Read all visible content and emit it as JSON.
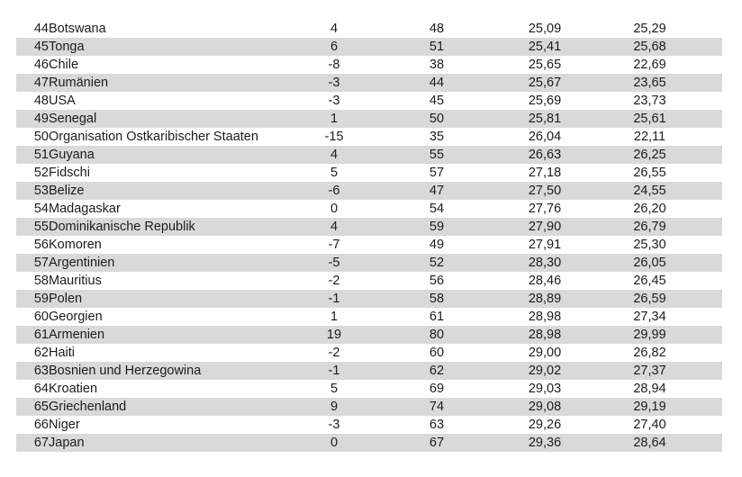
{
  "table": {
    "striped": true,
    "rows": [
      [
        "44",
        "Botswana",
        "4",
        "48",
        "25,09",
        "25,29"
      ],
      [
        "45",
        "Tonga",
        "6",
        "51",
        "25,41",
        "25,68"
      ],
      [
        "46",
        "Chile",
        "-8",
        "38",
        "25,65",
        "22,69"
      ],
      [
        "47",
        "Rumänien",
        "-3",
        "44",
        "25,67",
        "23,65"
      ],
      [
        "48",
        "USA",
        "-3",
        "45",
        "25,69",
        "23,73"
      ],
      [
        "49",
        "Senegal",
        "1",
        "50",
        "25,81",
        "25,61"
      ],
      [
        "50",
        "Organisation Ostkaribischer Staaten",
        "-15",
        "35",
        "26,04",
        "22,11"
      ],
      [
        "51",
        "Guyana",
        "4",
        "55",
        "26,63",
        "26,25"
      ],
      [
        "52",
        "Fidschi",
        "5",
        "57",
        "27,18",
        "26,55"
      ],
      [
        "53",
        "Belize",
        "-6",
        "47",
        "27,50",
        "24,55"
      ],
      [
        "54",
        "Madagaskar",
        "0",
        "54",
        "27,76",
        "26,20"
      ],
      [
        "55",
        "Dominikanische Republik",
        "4",
        "59",
        "27,90",
        "26,79"
      ],
      [
        "56",
        "Komoren",
        "-7",
        "49",
        "27,91",
        "25,30"
      ],
      [
        "57",
        "Argentinien",
        "-5",
        "52",
        "28,30",
        "26,05"
      ],
      [
        "58",
        "Mauritius",
        "-2",
        "56",
        "28,46",
        "26,45"
      ],
      [
        "59",
        "Polen",
        "-1",
        "58",
        "28,89",
        "26,59"
      ],
      [
        "60",
        "Georgien",
        "1",
        "61",
        "28,98",
        "27,34"
      ],
      [
        "61",
        "Armenien",
        "19",
        "80",
        "28,98",
        "29,99"
      ],
      [
        "62",
        "Haiti",
        "-2",
        "60",
        "29,00",
        "26,82"
      ],
      [
        "63",
        "Bosnien und Herzegowina",
        "-1",
        "62",
        "29,02",
        "27,37"
      ],
      [
        "64",
        "Kroatien",
        "5",
        "69",
        "29,03",
        "28,94"
      ],
      [
        "65",
        "Griechenland",
        "9",
        "74",
        "29,08",
        "29,19"
      ],
      [
        "66",
        "Niger",
        "-3",
        "63",
        "29,26",
        "27,40"
      ],
      [
        "67",
        "Japan",
        "0",
        "67",
        "29,36",
        "28,64"
      ]
    ]
  },
  "colors": {
    "row_stripe": "#d9d9d9",
    "row_plain": "#ffffff",
    "text": "#1c1c1c"
  }
}
